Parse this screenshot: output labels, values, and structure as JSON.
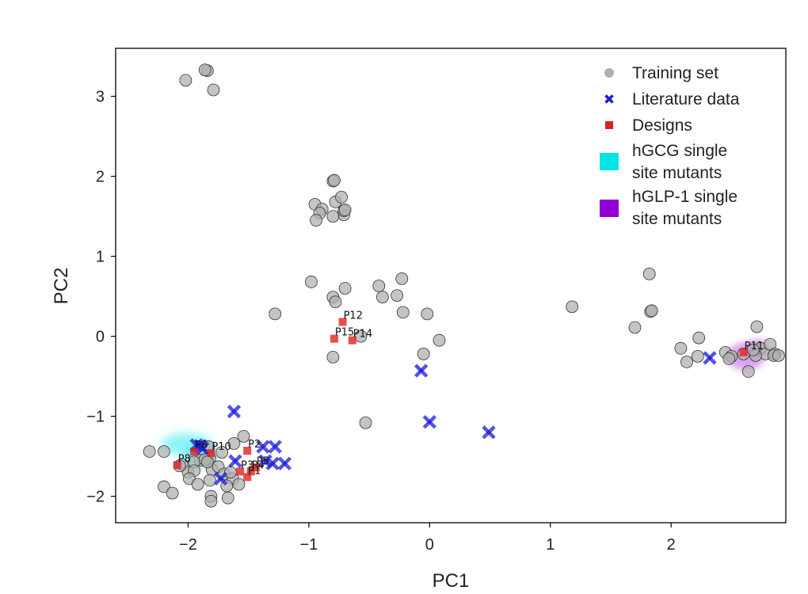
{
  "chart_data": {
    "type": "scatter",
    "xlabel": "PC1",
    "ylabel": "PC2",
    "xlim": [
      -2.6,
      2.95
    ],
    "ylim": [
      -2.33,
      3.6
    ],
    "xticks": [
      -2,
      -1,
      0,
      1,
      2
    ],
    "yticks": [
      -2,
      -1,
      0,
      1,
      2,
      3
    ],
    "xtick_labels": [
      "−2",
      "−1",
      "0",
      "1",
      "2"
    ],
    "ytick_labels": [
      "−2",
      "−1",
      "0",
      "1",
      "2",
      "3"
    ],
    "grid": false,
    "legend_placement": "top-right",
    "colors": {
      "training": "#b0b0b0",
      "literature": "#1a1adb",
      "designs": "#e02020",
      "hgcg": "#00e5e5",
      "hglp1": "#9400d3"
    },
    "legend": [
      {
        "key": "training",
        "label": "Training set",
        "marker": "circle"
      },
      {
        "key": "literature",
        "label": "Literature data",
        "marker": "x"
      },
      {
        "key": "designs",
        "label": "Designs",
        "marker": "square"
      },
      {
        "key": "hgcg",
        "label": "hGCG single site mutants",
        "label_lines": [
          "hGCG single",
          "site mutants"
        ],
        "marker": "big-square"
      },
      {
        "key": "hglp1",
        "label": "hGLP-1 single site mutants",
        "label_lines": [
          "hGLP-1 single",
          "site mutants"
        ],
        "marker": "big-square"
      }
    ],
    "series": [
      {
        "name": "Training set",
        "key": "training",
        "points": [
          [
            -1.84,
            3.32
          ],
          [
            -1.86,
            3.33
          ],
          [
            -2.02,
            3.2
          ],
          [
            -1.79,
            3.08
          ],
          [
            -0.8,
            1.94
          ],
          [
            -0.79,
            1.95
          ],
          [
            -0.95,
            1.65
          ],
          [
            -0.89,
            1.59
          ],
          [
            -0.91,
            1.54
          ],
          [
            -0.94,
            1.45
          ],
          [
            -0.78,
            1.68
          ],
          [
            -0.73,
            1.74
          ],
          [
            -0.71,
            1.52
          ],
          [
            -0.71,
            1.57
          ],
          [
            -0.7,
            1.58
          ],
          [
            -0.8,
            1.5
          ],
          [
            -0.98,
            0.68
          ],
          [
            -0.7,
            0.6
          ],
          [
            -0.42,
            0.63
          ],
          [
            -0.23,
            0.72
          ],
          [
            -0.27,
            0.51
          ],
          [
            -0.39,
            0.49
          ],
          [
            -0.8,
            0.49
          ],
          [
            -0.78,
            0.43
          ],
          [
            -0.22,
            0.3
          ],
          [
            -0.02,
            0.28
          ],
          [
            -1.28,
            0.28
          ],
          [
            -0.57,
            0.0
          ],
          [
            -0.05,
            -0.22
          ],
          [
            0.08,
            -0.05
          ],
          [
            -0.8,
            -0.26
          ],
          [
            -0.53,
            -1.08
          ],
          [
            1.18,
            0.37
          ],
          [
            1.82,
            0.78
          ],
          [
            1.83,
            0.31
          ],
          [
            1.84,
            0.32
          ],
          [
            1.7,
            0.11
          ],
          [
            2.23,
            -0.02
          ],
          [
            2.08,
            -0.15
          ],
          [
            2.13,
            -0.32
          ],
          [
            2.22,
            -0.25
          ],
          [
            2.45,
            -0.2
          ],
          [
            2.5,
            -0.25
          ],
          [
            2.48,
            -0.28
          ],
          [
            2.6,
            -0.22
          ],
          [
            2.64,
            -0.44
          ],
          [
            2.71,
            0.12
          ],
          [
            2.74,
            -0.15
          ],
          [
            2.78,
            -0.22
          ],
          [
            2.82,
            -0.1
          ],
          [
            2.86,
            -0.22
          ],
          [
            2.85,
            -0.24
          ],
          [
            2.89,
            -0.24
          ],
          [
            2.7,
            -0.24
          ],
          [
            2.68,
            -0.17
          ],
          [
            -2.32,
            -1.44
          ],
          [
            -2.2,
            -1.44
          ],
          [
            -1.82,
            -1.52
          ],
          [
            -1.83,
            -1.38
          ],
          [
            -1.62,
            -1.34
          ],
          [
            -1.54,
            -1.25
          ],
          [
            -1.9,
            -1.55
          ],
          [
            -1.95,
            -1.57
          ],
          [
            -2.05,
            -1.6
          ],
          [
            -2.0,
            -1.7
          ],
          [
            -1.95,
            -1.68
          ],
          [
            -1.8,
            -1.67
          ],
          [
            -1.75,
            -1.63
          ],
          [
            -1.7,
            -1.72
          ],
          [
            -1.63,
            -1.78
          ],
          [
            -1.58,
            -1.85
          ],
          [
            -2.2,
            -1.88
          ],
          [
            -2.13,
            -1.96
          ],
          [
            -1.99,
            -1.78
          ],
          [
            -1.92,
            -1.85
          ],
          [
            -1.82,
            -1.8
          ],
          [
            -1.68,
            -1.87
          ],
          [
            -1.67,
            -2.02
          ],
          [
            -1.81,
            -2.0
          ],
          [
            -1.81,
            -2.06
          ],
          [
            -1.86,
            -1.54
          ],
          [
            -1.84,
            -1.57
          ],
          [
            -1.65,
            -1.7
          ],
          [
            -1.72,
            -1.45
          ],
          [
            -2.07,
            -1.62
          ]
        ]
      },
      {
        "name": "Literature data",
        "key": "literature",
        "points": [
          [
            0.49,
            -1.2
          ],
          [
            0.0,
            -1.07
          ],
          [
            -0.07,
            -0.43
          ],
          [
            2.32,
            -0.27
          ],
          [
            -1.62,
            -0.94
          ],
          [
            -1.9,
            -1.37
          ],
          [
            -1.93,
            -1.36
          ],
          [
            -1.88,
            -1.4
          ],
          [
            -1.38,
            -1.38
          ],
          [
            -1.28,
            -1.38
          ],
          [
            -1.3,
            -1.59
          ],
          [
            -1.2,
            -1.59
          ],
          [
            -1.61,
            -1.56
          ],
          [
            -1.73,
            -1.78
          ],
          [
            -1.36,
            -1.56
          ]
        ]
      },
      {
        "name": "Designs",
        "key": "designs",
        "points": [
          {
            "label": "P12",
            "x": -0.72,
            "y": 0.18
          },
          {
            "label": "P15",
            "x": -0.79,
            "y": -0.03
          },
          {
            "label": "P14",
            "x": -0.64,
            "y": -0.05
          },
          {
            "label": "P11",
            "x": 2.6,
            "y": -0.2
          },
          {
            "label": "P10",
            "x": -1.81,
            "y": -1.46
          },
          {
            "label": "P6",
            "x": -1.95,
            "y": -1.44
          },
          {
            "label": "P8",
            "x": -2.09,
            "y": -1.61
          },
          {
            "label": "P2",
            "x": -1.51,
            "y": -1.43
          },
          {
            "label": "P3",
            "x": -1.57,
            "y": -1.69
          },
          {
            "label": "P5",
            "x": -1.44,
            "y": -1.64
          },
          {
            "label": "P4",
            "x": -1.48,
            "y": -1.69
          },
          {
            "label": "P1",
            "x": -1.51,
            "y": -1.76
          }
        ]
      },
      {
        "name": "hGCG single site mutants",
        "key": "hgcg",
        "region_center": [
          -1.95,
          -1.45
        ]
      },
      {
        "name": "hGLP-1 single site mutants",
        "key": "hglp1",
        "region_center": [
          2.62,
          -0.25
        ]
      }
    ]
  }
}
